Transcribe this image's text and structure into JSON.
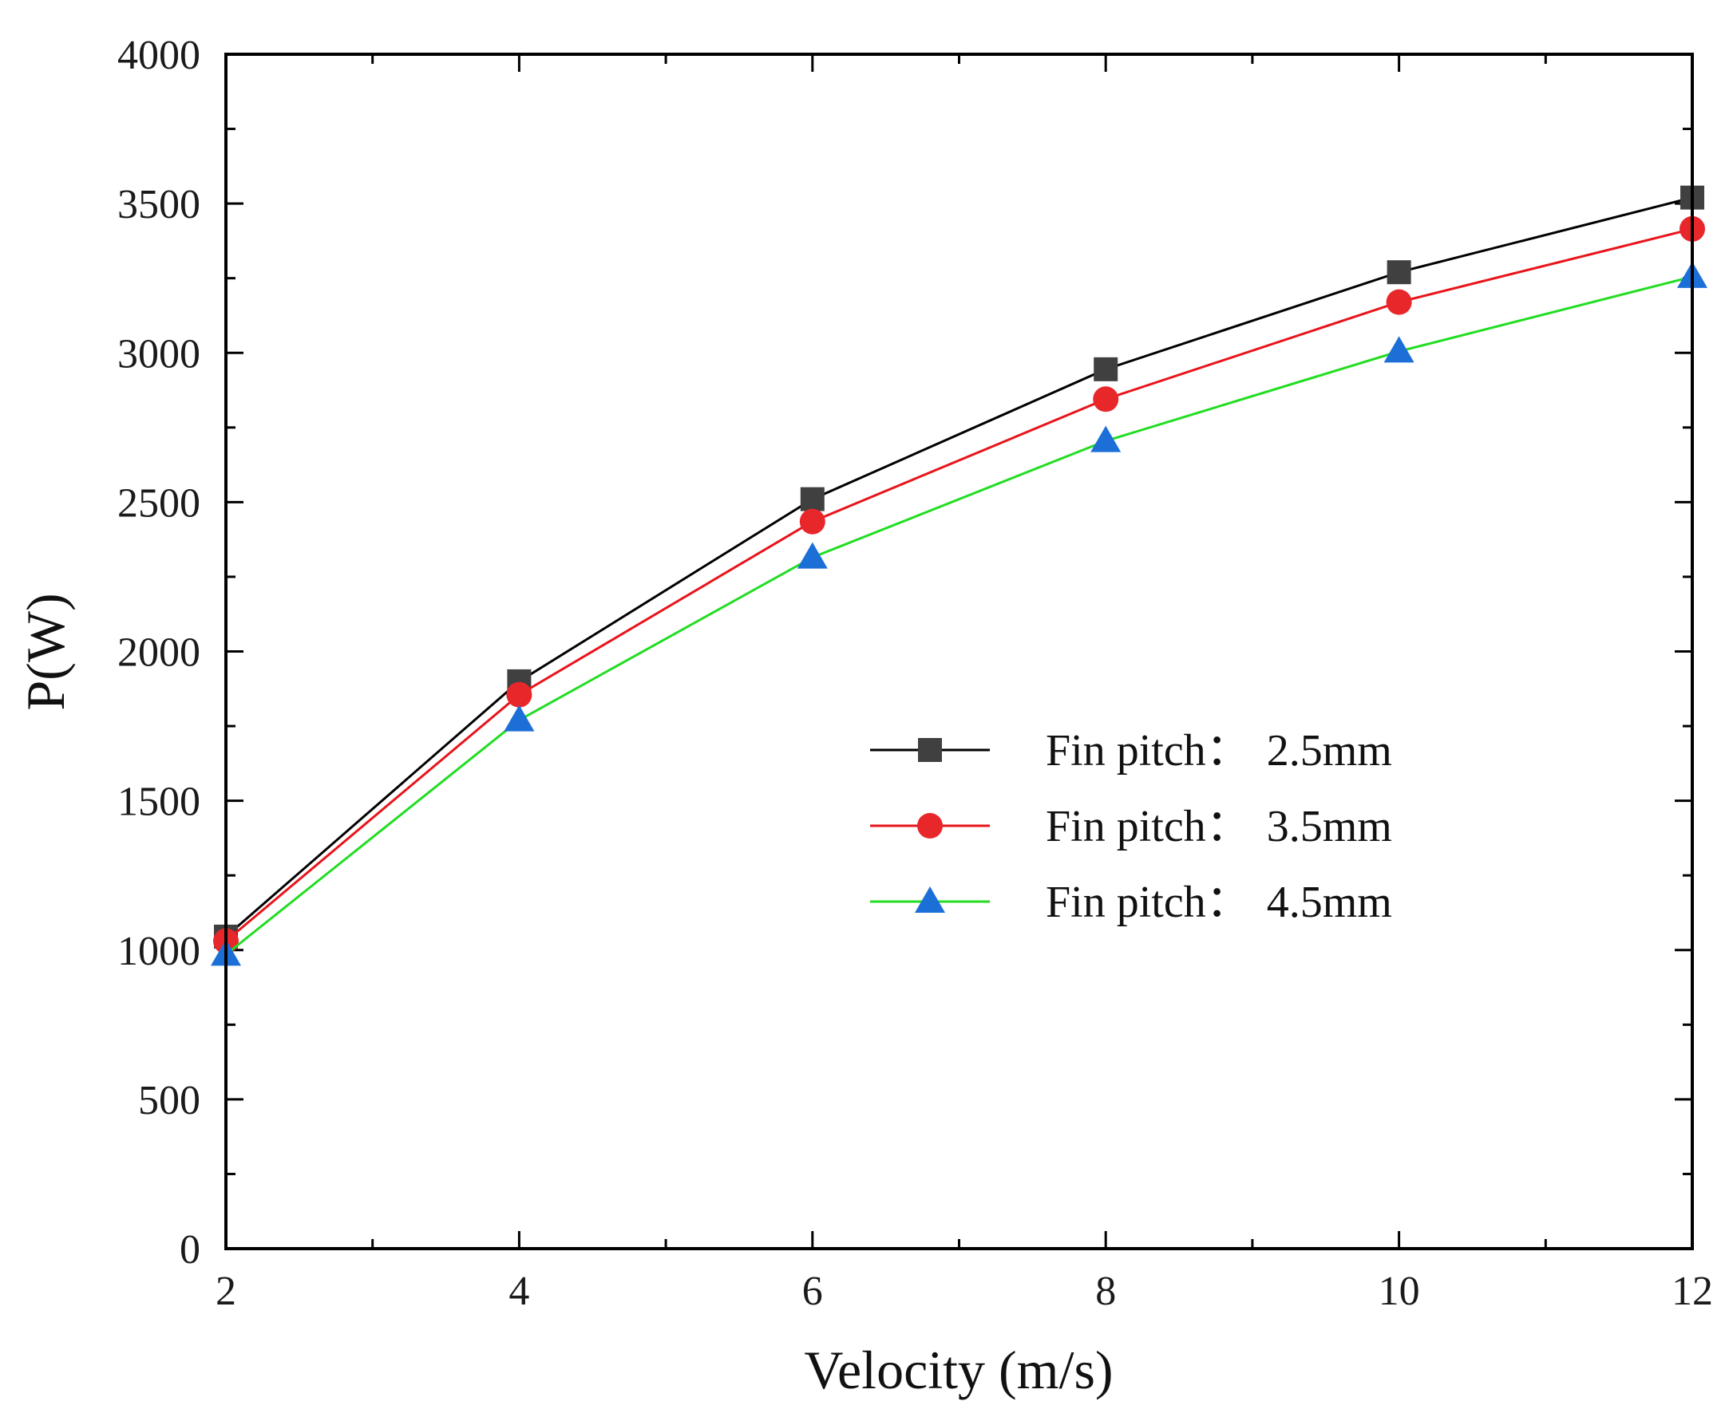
{
  "chart_data": {
    "type": "line",
    "title": "",
    "xlabel": "Velocity (m/s)",
    "ylabel": "P(W)",
    "xlim": [
      2,
      12
    ],
    "ylim": [
      0,
      4000
    ],
    "x_ticks": [
      2,
      4,
      6,
      8,
      10,
      12
    ],
    "x_tick_labels": [
      "2",
      "4",
      "6",
      "8",
      "10",
      "12"
    ],
    "y_ticks": [
      0,
      500,
      1000,
      1500,
      2000,
      2500,
      3000,
      3500,
      4000
    ],
    "y_tick_labels": [
      "0",
      "500",
      "1000",
      "1500",
      "2000",
      "2500",
      "3000",
      "3500",
      "4000"
    ],
    "x_minor_step": 1,
    "y_minor_step": 250,
    "grid": false,
    "legend_position": "center-right",
    "series": [
      {
        "name": "Fin pitch：2.5mm",
        "label_prefix": "Fin pitch：",
        "label_value": "2.5mm",
        "color": "#000000",
        "marker_color": "#404040",
        "marker": "square",
        "x": [
          2,
          4,
          6,
          8,
          10,
          12
        ],
        "values": [
          1045,
          1900,
          2510,
          2945,
          3270,
          3520
        ]
      },
      {
        "name": "Fin pitch：3.5mm",
        "label_prefix": "Fin pitch：",
        "label_value": "3.5mm",
        "color": "#e8141b",
        "marker_color": "#e8272b",
        "marker": "circle",
        "x": [
          2,
          4,
          6,
          8,
          10,
          12
        ],
        "values": [
          1030,
          1855,
          2435,
          2845,
          3170,
          3415
        ]
      },
      {
        "name": "Fin pitch：4.5mm",
        "label_prefix": "Fin pitch：",
        "label_value": "4.5mm",
        "color": "#22dd22",
        "marker_color": "#1c6fd6",
        "marker": "triangle",
        "x": [
          2,
          4,
          6,
          8,
          10,
          12
        ],
        "values": [
          985,
          1770,
          2315,
          2705,
          3005,
          3255
        ]
      }
    ]
  }
}
